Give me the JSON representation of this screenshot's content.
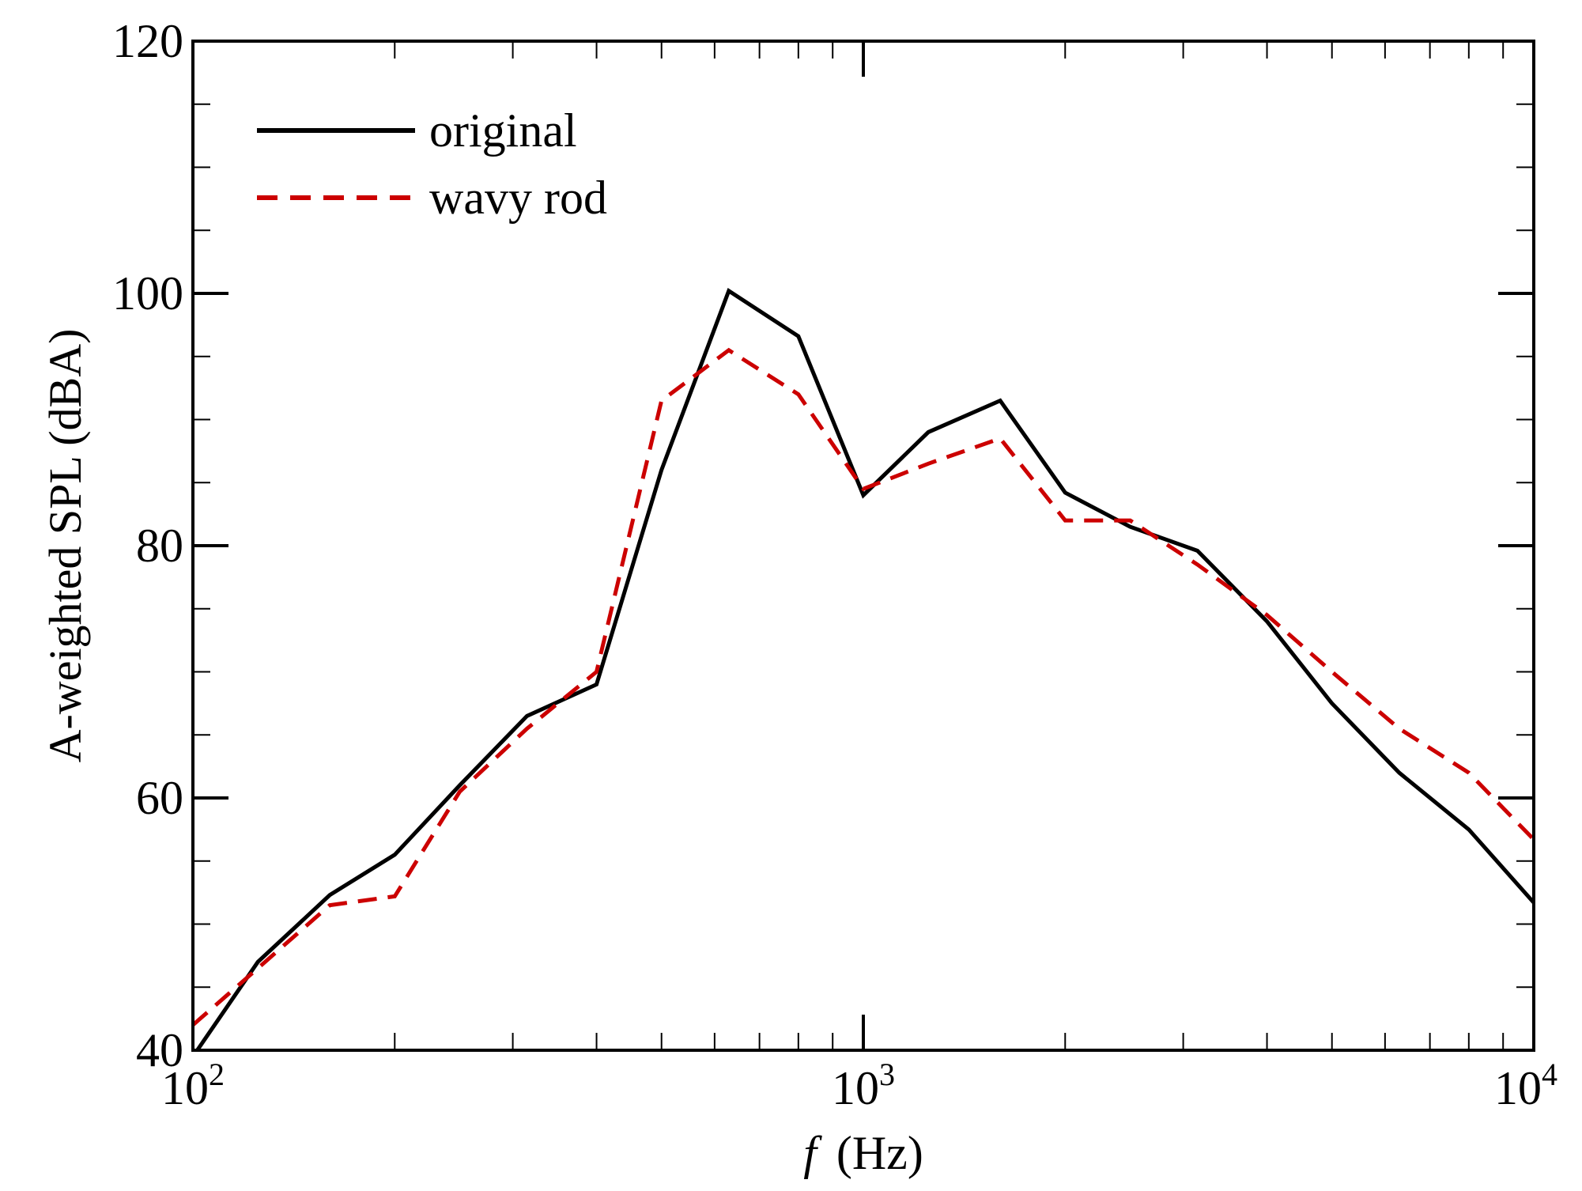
{
  "chart_data": {
    "type": "line",
    "title": "",
    "xlabel_symbol": "f",
    "xlabel_unit": "(Hz)",
    "ylabel": "A-weighted SPL (dBA)",
    "xscale": "log",
    "xlim": [
      100,
      10000
    ],
    "ylim": [
      40,
      120
    ],
    "x_major_ticks": [
      {
        "value": 100,
        "base": "10",
        "exp": "2"
      },
      {
        "value": 1000,
        "base": "10",
        "exp": "3"
      },
      {
        "value": 10000,
        "base": "10",
        "exp": "4"
      }
    ],
    "y_major_ticks": [
      40,
      60,
      80,
      100,
      120
    ],
    "y_minor_step": 5,
    "legend_position": "top-left",
    "series": [
      {
        "name": "original",
        "color": "#000000",
        "style": "solid",
        "x": [
          100,
          125,
          160,
          200,
          250,
          315,
          400,
          500,
          630,
          800,
          1000,
          1250,
          1600,
          2000,
          2500,
          3150,
          4000,
          5000,
          6300,
          8000,
          10000
        ],
        "y": [
          39.5,
          47,
          52.3,
          55.5,
          61,
          66.5,
          69,
          86,
          100.2,
          96.6,
          84,
          89,
          91.5,
          84.2,
          81.5,
          79.6,
          74,
          67.5,
          62,
          57.5,
          51.7
        ]
      },
      {
        "name": "wavy rod",
        "color": "#cc0000",
        "style": "dashed",
        "x": [
          100,
          125,
          160,
          200,
          250,
          315,
          400,
          500,
          630,
          800,
          1000,
          1250,
          1600,
          2000,
          2500,
          3150,
          4000,
          5000,
          6300,
          8000,
          10000
        ],
        "y": [
          42,
          46.5,
          51.5,
          52.2,
          60.5,
          65.5,
          70,
          91.5,
          95.5,
          92,
          84.5,
          86.5,
          88.5,
          82,
          82,
          78.5,
          74.5,
          70,
          65.5,
          62,
          56.7
        ]
      }
    ]
  }
}
